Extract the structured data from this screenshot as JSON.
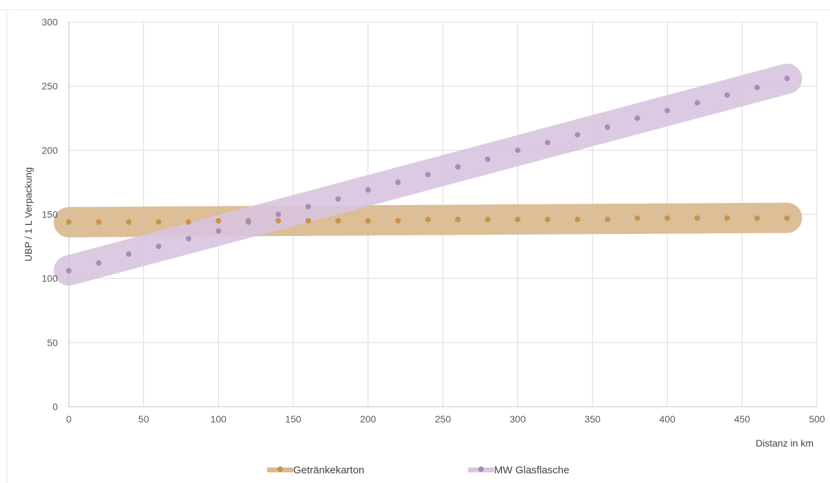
{
  "chart_data": {
    "type": "scatter",
    "title": "",
    "xlabel": "Distanz in km",
    "ylabel": "UBP / 1 L Verpackung",
    "xlim": [
      0,
      500
    ],
    "ylim": [
      0,
      300
    ],
    "x_ticks": [
      "0",
      "50",
      "100",
      "150",
      "200",
      "250",
      "300",
      "350",
      "400",
      "450",
      "500"
    ],
    "y_ticks": [
      "0",
      "50",
      "100",
      "150",
      "200",
      "250",
      "300"
    ],
    "grid": true,
    "legend_position": "bottom",
    "x": [
      0,
      20,
      40,
      60,
      80,
      100,
      120,
      140,
      160,
      180,
      200,
      220,
      240,
      260,
      280,
      300,
      320,
      340,
      360,
      380,
      400,
      420,
      440,
      460,
      480
    ],
    "series": [
      {
        "name": "Getränkekarton",
        "color": "#C8924A",
        "band_color": "#D9B88C",
        "values": [
          144,
          144,
          144,
          144,
          144,
          145,
          145,
          145,
          145,
          145,
          145,
          145,
          146,
          146,
          146,
          146,
          146,
          146,
          146,
          147,
          147,
          147,
          147,
          147,
          147
        ]
      },
      {
        "name": "MW Glasflasche",
        "color": "#A98BB8",
        "band_color": "#D9C5DF",
        "values": [
          106,
          112,
          119,
          125,
          131,
          137,
          144,
          150,
          156,
          162,
          169,
          175,
          181,
          187,
          193,
          200,
          206,
          212,
          218,
          225,
          231,
          237,
          243,
          249,
          256
        ]
      }
    ]
  }
}
